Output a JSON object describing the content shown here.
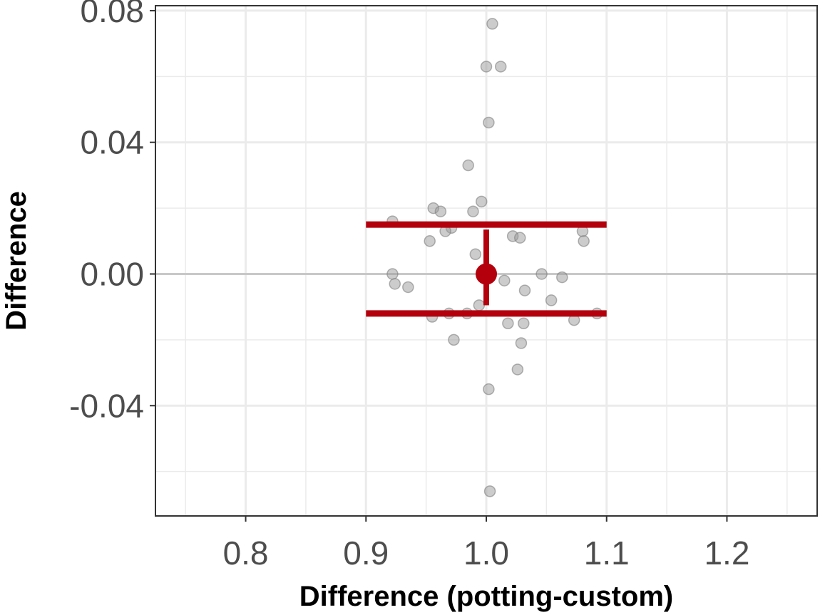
{
  "chart_data": {
    "type": "scatter",
    "title": "",
    "xlabel": "Difference (potting-custom)",
    "ylabel": "Difference",
    "xlim": [
      0.725,
      1.275
    ],
    "ylim": [
      -0.0735,
      0.0815
    ],
    "x_ticks": [
      0.8,
      0.9,
      1.0,
      1.1,
      1.2
    ],
    "x_tick_labels": [
      "0.8",
      "0.9",
      "1.0",
      "1.1",
      "1.2"
    ],
    "y_ticks": [
      0.08,
      0.04,
      0.0,
      -0.04
    ],
    "y_tick_labels": [
      "0.08",
      "0.04",
      "0.00",
      "-0.04"
    ],
    "grid": true,
    "zero_line": true,
    "series": [
      {
        "kind": "jittered points",
        "color": "#999999",
        "points": [
          [
            1.005,
            0.076
          ],
          [
            1.0,
            0.063
          ],
          [
            1.012,
            0.063
          ],
          [
            1.002,
            0.046
          ],
          [
            0.985,
            0.033
          ],
          [
            0.996,
            0.022
          ],
          [
            0.956,
            0.02
          ],
          [
            0.962,
            0.019
          ],
          [
            0.989,
            0.019
          ],
          [
            0.922,
            0.016
          ],
          [
            0.971,
            0.014
          ],
          [
            0.966,
            0.013
          ],
          [
            1.08,
            0.013
          ],
          [
            1.022,
            0.0115
          ],
          [
            1.028,
            0.011
          ],
          [
            0.953,
            0.01
          ],
          [
            1.081,
            0.01
          ],
          [
            0.991,
            0.006
          ],
          [
            0.922,
            0.0
          ],
          [
            1.046,
            0.0
          ],
          [
            1.063,
            -0.001
          ],
          [
            1.015,
            -0.002
          ],
          [
            0.924,
            -0.003
          ],
          [
            0.935,
            -0.004
          ],
          [
            1.032,
            -0.005
          ],
          [
            1.054,
            -0.008
          ],
          [
            0.994,
            -0.0095
          ],
          [
            0.969,
            -0.012
          ],
          [
            0.984,
            -0.012
          ],
          [
            1.092,
            -0.012
          ],
          [
            0.955,
            -0.013
          ],
          [
            1.073,
            -0.014
          ],
          [
            1.018,
            -0.015
          ],
          [
            1.031,
            -0.015
          ],
          [
            0.973,
            -0.02
          ],
          [
            1.029,
            -0.021
          ],
          [
            1.026,
            -0.029
          ],
          [
            1.002,
            -0.035
          ],
          [
            1.003,
            -0.066
          ]
        ]
      },
      {
        "kind": "mean with intervals",
        "color": "#b3000c",
        "x": 1.0,
        "mean": 0.0,
        "ci_lower": -0.0095,
        "ci_upper": 0.0135,
        "limits_x_range": [
          0.9,
          1.1
        ],
        "upper_limit": 0.015,
        "lower_limit": -0.012
      }
    ]
  }
}
